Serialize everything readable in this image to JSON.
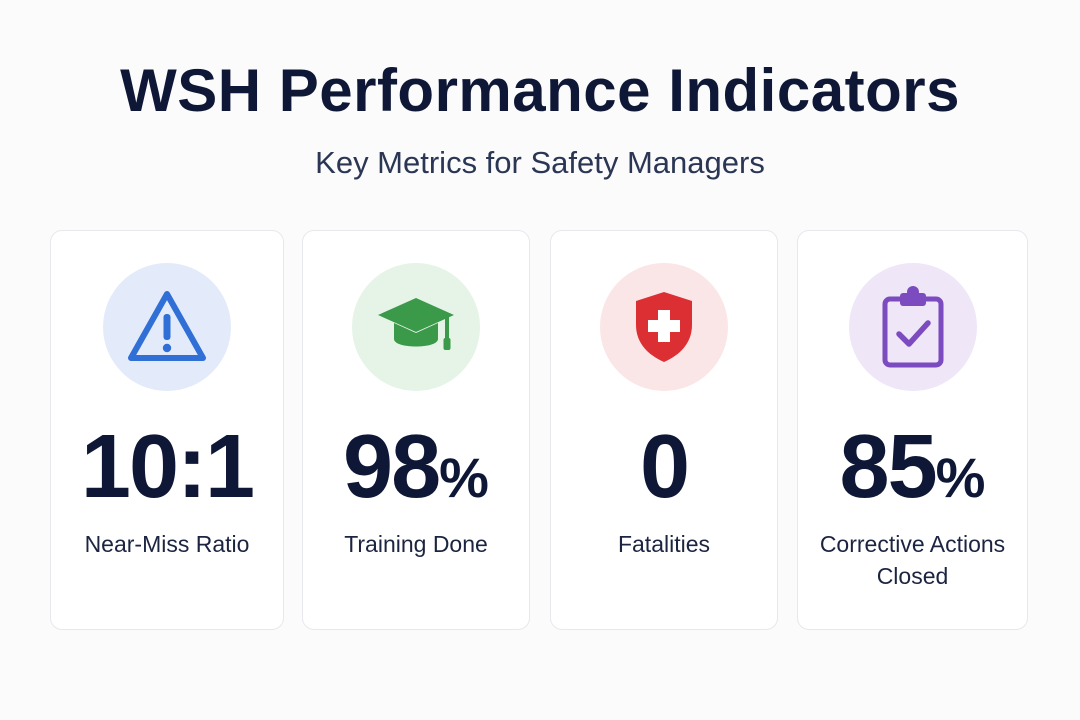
{
  "header": {
    "title": "WSH Performance Indicators",
    "subtitle": "Key Metrics for Safety Managers"
  },
  "cards": [
    {
      "value": "10:1",
      "unit": "",
      "label": "Near-Miss Ratio",
      "icon": "warning-triangle-icon",
      "icon_color": "#2f6fd6",
      "circle_color": "#e3ebfa"
    },
    {
      "value": "98",
      "unit": "%",
      "label": "Training Done",
      "icon": "graduation-cap-icon",
      "icon_color": "#3a9a4a",
      "circle_color": "#e6f4e8"
    },
    {
      "value": "0",
      "unit": "",
      "label": "Fatalities",
      "icon": "medical-shield-icon",
      "icon_color": "#dc2f34",
      "circle_color": "#fbe6e7"
    },
    {
      "value": "85",
      "unit": "%",
      "label": "Corrective Actions Closed",
      "icon": "clipboard-check-icon",
      "icon_color": "#7b4bbf",
      "circle_color": "#efe6f7"
    }
  ]
}
